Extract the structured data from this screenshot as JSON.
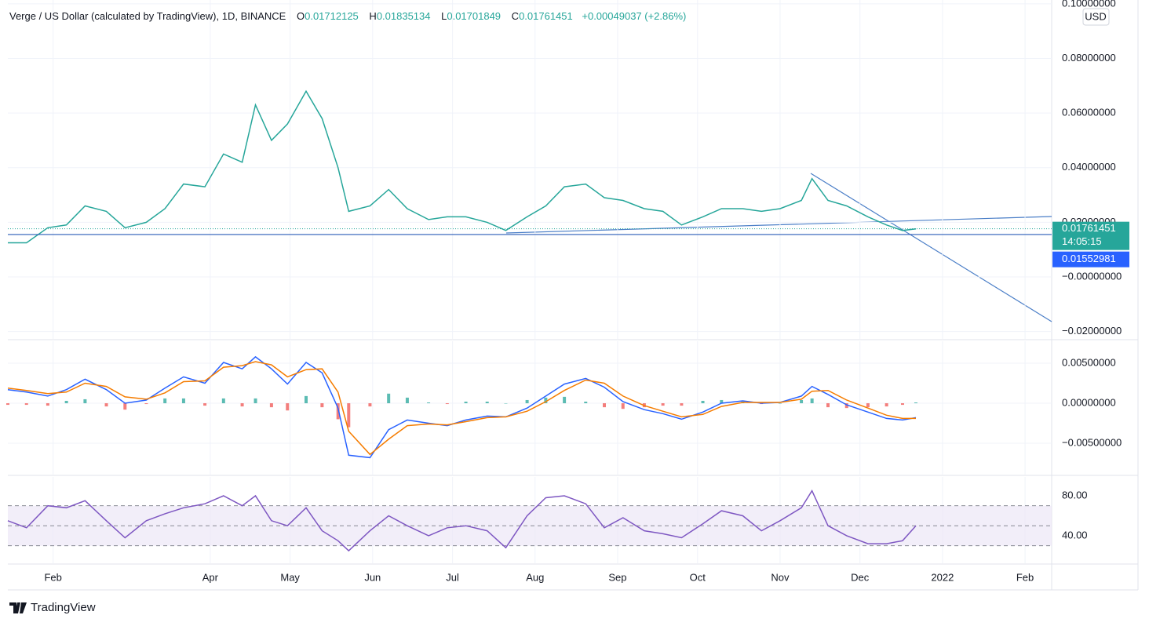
{
  "header": {
    "symbol": "Verge / US Dollar (calculated by TradingView), 1D, BINANCE",
    "ohlc": [
      {
        "key": "O",
        "value": "0.01712125"
      },
      {
        "key": "H",
        "value": "0.01835134"
      },
      {
        "key": "L",
        "value": "0.01701849"
      },
      {
        "key": "C",
        "value": "0.01761451"
      }
    ],
    "change": "+0.00049037 (+2.86%)"
  },
  "footer": {
    "brand": "TradingView"
  },
  "chart_data": [
    {
      "type": "line",
      "currency": "USD",
      "countdown": "14:05:15",
      "last_price": 0.01761451,
      "level": 0.01552981,
      "xlim": [
        14,
        406
      ],
      "xticks": [
        {
          "value": 31,
          "label": "Feb"
        },
        {
          "value": 90,
          "label": "Apr"
        },
        {
          "value": 120,
          "label": "May"
        },
        {
          "value": 151,
          "label": "Jun"
        },
        {
          "value": 181,
          "label": "Jul"
        },
        {
          "value": 212,
          "label": "Aug"
        },
        {
          "value": 243,
          "label": "Sep"
        },
        {
          "value": 273,
          "label": "Oct"
        },
        {
          "value": 304,
          "label": "Nov"
        },
        {
          "value": 334,
          "label": "Dec"
        },
        {
          "value": 365,
          "label": "2022"
        },
        {
          "value": 396,
          "label": "Feb"
        }
      ],
      "ylim": [
        -0.0227,
        0.1014
      ],
      "yticks": [
        {
          "value": 0.1,
          "label": "0.10000000"
        },
        {
          "value": 0.08,
          "label": "0.08000000"
        },
        {
          "value": 0.06,
          "label": "0.06000000"
        },
        {
          "value": 0.04,
          "label": "0.04000000"
        },
        {
          "value": 0.02,
          "label": "0.02000000"
        },
        {
          "value": 0,
          "label": "−0.00000000"
        },
        {
          "value": -0.02,
          "label": "−0.02000000"
        }
      ],
      "grid": true,
      "x": [
        14,
        21,
        29,
        36,
        43,
        51,
        58,
        66,
        73,
        80,
        88,
        95,
        102,
        107,
        113,
        119,
        126,
        132,
        138,
        142,
        150,
        157,
        164,
        172,
        179,
        186,
        194,
        201,
        209,
        216,
        223,
        231,
        238,
        245,
        253,
        260,
        267,
        275,
        282,
        290,
        297,
        304,
        312,
        316,
        322,
        329,
        337,
        344,
        350,
        355
      ],
      "series": [
        {
          "color": "#26a69a",
          "values": [
            0.0125,
            0.0125,
            0.018,
            0.019,
            0.026,
            0.024,
            0.018,
            0.02,
            0.025,
            0.034,
            0.033,
            0.045,
            0.042,
            0.063,
            0.05,
            0.056,
            0.068,
            0.058,
            0.04,
            0.024,
            0.026,
            0.032,
            0.025,
            0.021,
            0.022,
            0.022,
            0.02,
            0.017,
            0.022,
            0.026,
            0.033,
            0.034,
            0.029,
            0.028,
            0.025,
            0.024,
            0.019,
            0.022,
            0.025,
            0.025,
            0.024,
            0.025,
            0.028,
            0.036,
            0.028,
            0.026,
            0.022,
            0.019,
            0.017,
            0.0176
          ]
        }
      ]
    },
    {
      "type": "line",
      "xlim": [
        14,
        406
      ],
      "ylim": [
        -0.00892,
        0.00775
      ],
      "yticks": [
        {
          "value": 0.005,
          "label": "0.00500000"
        },
        {
          "value": 0,
          "label": "0.00000000"
        },
        {
          "value": -0.005,
          "label": "−0.00500000"
        }
      ],
      "grid": true,
      "x": [
        14,
        21,
        29,
        36,
        43,
        51,
        58,
        66,
        73,
        80,
        88,
        95,
        102,
        107,
        113,
        119,
        126,
        132,
        138,
        142,
        150,
        157,
        164,
        172,
        179,
        186,
        194,
        201,
        209,
        216,
        223,
        231,
        238,
        245,
        253,
        260,
        267,
        275,
        282,
        290,
        297,
        304,
        312,
        316,
        322,
        329,
        337,
        344,
        350,
        355
      ],
      "series": [
        {
          "kind": "bar",
          "color": "#26a69a",
          "negative_color": "#ef5350",
          "values": [
            -0.0002,
            -0.0002,
            -0.0003,
            0.0003,
            0.0005,
            -0.0004,
            -0.0008,
            -0.0001,
            0.0006,
            0.0006,
            -0.0003,
            0.0006,
            -0.0004,
            0.0006,
            -0.0005,
            -0.0009,
            0.0009,
            -0.0005,
            -0.002,
            -0.003,
            -0.0004,
            0.0012,
            0.0007,
            0.0001,
            -0.0001,
            0.0002,
            0.0002,
            0,
            0.0004,
            0.0007,
            0.0008,
            0.0002,
            -0.0005,
            -0.0007,
            -0.0005,
            -0.0003,
            -0.0003,
            0.0003,
            0.0004,
            0.0002,
            -0.0001,
            0,
            0.0004,
            0.0006,
            -0.0005,
            -0.0006,
            -0.0005,
            -0.0004,
            -0.0002,
            0.0001
          ]
        },
        {
          "color": "#2962ff",
          "values": [
            0.0017,
            0.0014,
            0.0009,
            0.0017,
            0.003,
            0.0017,
            0,
            0.0004,
            0.0019,
            0.0033,
            0.0025,
            0.0051,
            0.0043,
            0.0058,
            0.0043,
            0.0024,
            0.0051,
            0.0038,
            -0.0006,
            -0.0065,
            -0.0068,
            -0.0033,
            -0.0021,
            -0.0025,
            -0.0028,
            -0.0021,
            -0.0016,
            -0.0017,
            -0.0006,
            0.0009,
            0.0024,
            0.0031,
            0.002,
            0.0002,
            -0.0008,
            -0.0013,
            -0.002,
            -0.0011,
            0,
            0.0003,
            0,
            0.0001,
            0.0009,
            0.0021,
            0.0011,
            -0.0002,
            -0.0011,
            -0.0019,
            -0.0021,
            -0.0018
          ]
        },
        {
          "color": "#f57c00",
          "values": [
            0.0019,
            0.0016,
            0.0012,
            0.0014,
            0.0025,
            0.0021,
            0.0008,
            0.0005,
            0.0013,
            0.0027,
            0.0028,
            0.0045,
            0.0047,
            0.0052,
            0.0048,
            0.0033,
            0.0042,
            0.0043,
            0.0014,
            -0.0035,
            -0.0064,
            -0.0045,
            -0.0028,
            -0.0026,
            -0.0027,
            -0.0023,
            -0.0018,
            -0.0017,
            -0.001,
            0.0002,
            0.0016,
            0.0029,
            0.0025,
            0.0009,
            -0.0003,
            -0.001,
            -0.0017,
            -0.0014,
            -0.0004,
            0.0001,
            0.0001,
            0.0001,
            0.0005,
            0.0015,
            0.0016,
            0.0004,
            -0.0006,
            -0.0015,
            -0.0019,
            -0.0019
          ]
        }
      ]
    },
    {
      "type": "line",
      "xlim": [
        14,
        406
      ],
      "ylim": [
        12.5,
        98.8
      ],
      "yticks": [
        {
          "value": 80,
          "label": "80.00"
        },
        {
          "value": 40,
          "label": "40.00"
        }
      ],
      "levels": [
        30,
        50,
        70
      ],
      "band_color": "#ede7f6",
      "x": [
        14,
        21,
        29,
        36,
        43,
        51,
        58,
        66,
        73,
        80,
        88,
        95,
        102,
        107,
        113,
        119,
        126,
        132,
        138,
        142,
        150,
        157,
        164,
        172,
        179,
        186,
        194,
        201,
        209,
        216,
        223,
        231,
        238,
        245,
        253,
        260,
        267,
        275,
        282,
        290,
        297,
        304,
        312,
        316,
        322,
        329,
        337,
        344,
        350,
        355
      ],
      "series": [
        {
          "color": "#7e57c2",
          "values": [
            55,
            48,
            70,
            68,
            75,
            55,
            38,
            55,
            62,
            68,
            72,
            80,
            70,
            80,
            55,
            50,
            68,
            45,
            35,
            25,
            45,
            60,
            50,
            40,
            48,
            50,
            45,
            28,
            60,
            78,
            80,
            72,
            48,
            58,
            45,
            42,
            38,
            52,
            65,
            60,
            45,
            55,
            68,
            85,
            50,
            40,
            32,
            32,
            35,
            50
          ]
        }
      ]
    }
  ]
}
